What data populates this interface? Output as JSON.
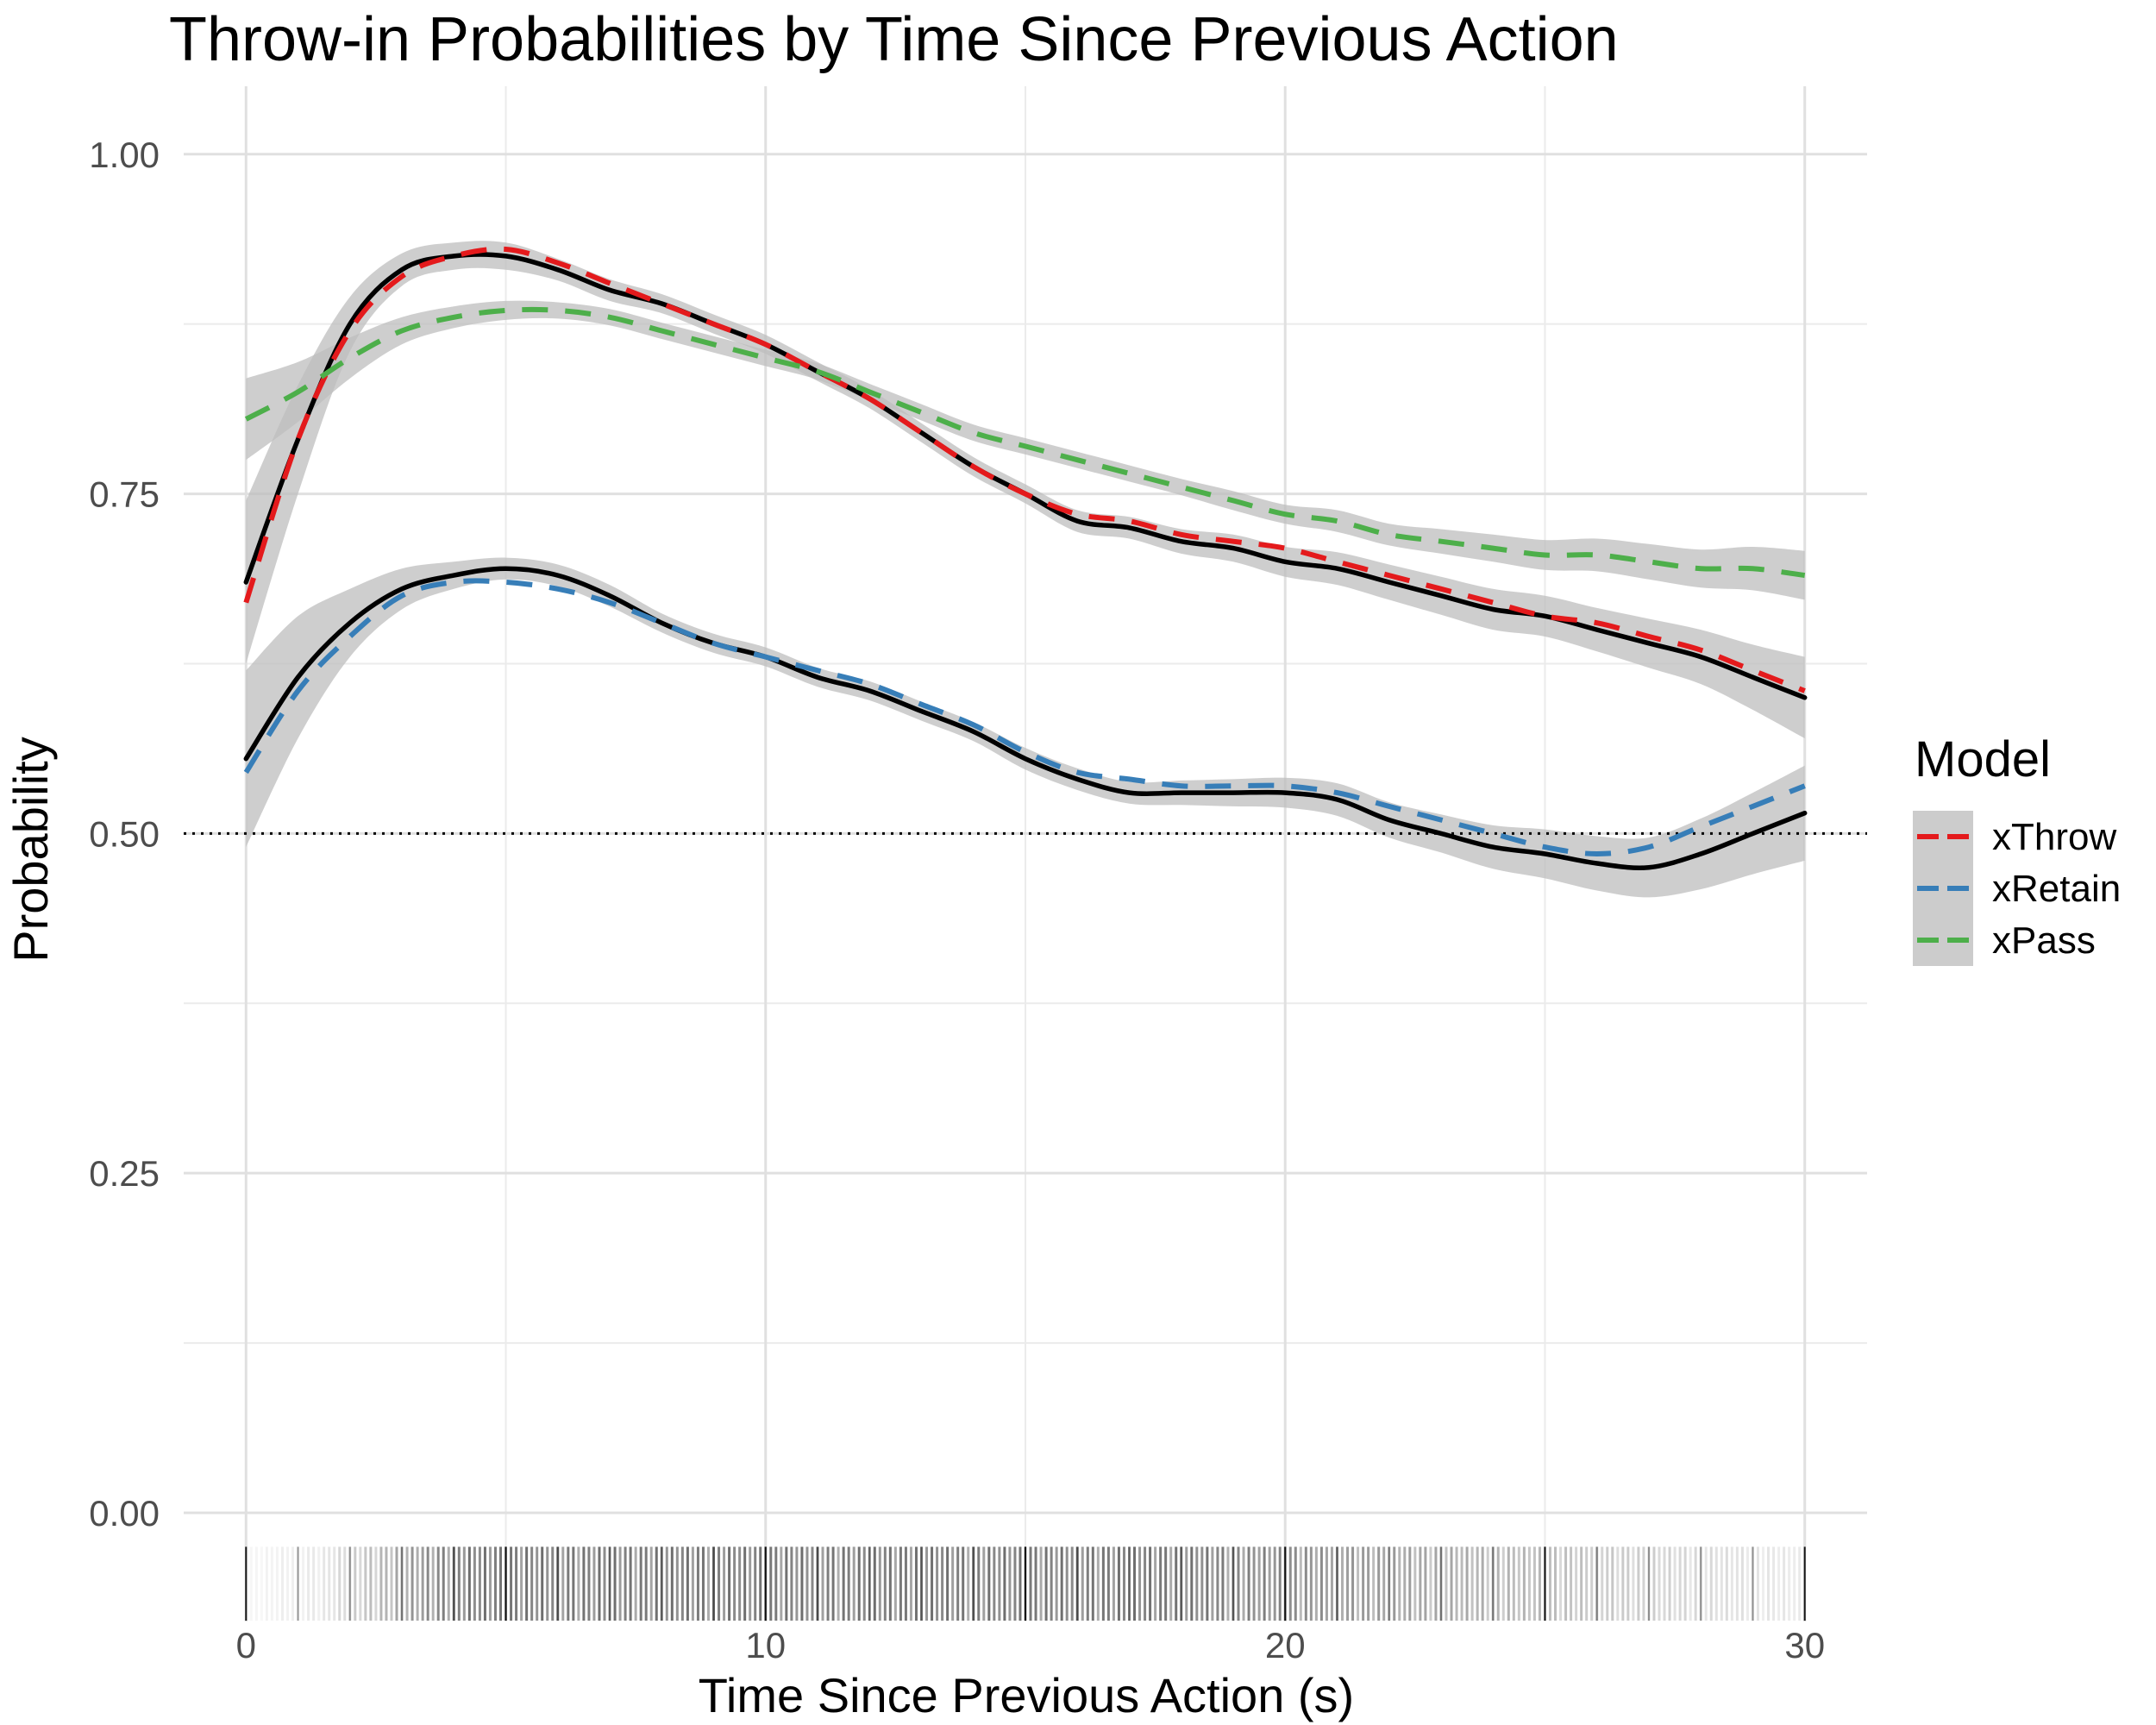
{
  "chart_data": {
    "type": "line",
    "title": "Throw-in Probabilities by Time Since Previous Action",
    "xlabel": "Time Since Previous Action (s)",
    "ylabel": "Probability",
    "xlim": [
      -1.2,
      31.2
    ],
    "ylim": [
      -0.08,
      1.05
    ],
    "x_ticks": [
      0,
      10,
      20,
      30
    ],
    "x_tick_labels": [
      "0",
      "10",
      "20",
      "30"
    ],
    "y_ticks": [
      0,
      0.25,
      0.5,
      0.75,
      1.0
    ],
    "y_tick_labels": [
      "0.00",
      "0.25",
      "0.50",
      "0.75",
      "1.00"
    ],
    "minor_y_ticks": [
      0.125,
      0.375,
      0.625,
      0.875
    ],
    "minor_x_ticks": [
      5,
      15,
      25
    ],
    "grid": true,
    "reference_line": {
      "y": 0.5,
      "style": "dotted",
      "color": "#000000"
    },
    "legend": {
      "title": "Model",
      "position": "right",
      "entries": [
        {
          "label": "xThrow",
          "color": "#e41a1c",
          "dash": "dashed"
        },
        {
          "label": "xRetain",
          "color": "#377eb8",
          "dash": "dashed"
        },
        {
          "label": "xPass",
          "color": "#4daf4a",
          "dash": "dashed"
        }
      ]
    },
    "x": [
      0,
      1,
      2,
      3,
      4,
      5,
      6,
      7,
      8,
      9,
      10,
      11,
      12,
      13,
      14,
      15,
      16,
      17,
      18,
      19,
      20,
      21,
      22,
      23,
      24,
      25,
      26,
      27,
      28,
      29,
      30
    ],
    "series": [
      {
        "name": "xThrow",
        "color": "#e41a1c",
        "dash": "dashed",
        "values": [
          0.67,
          0.79,
          0.87,
          0.91,
          0.925,
          0.93,
          0.92,
          0.905,
          0.89,
          0.875,
          0.86,
          0.84,
          0.82,
          0.795,
          0.77,
          0.75,
          0.735,
          0.73,
          0.72,
          0.715,
          0.71,
          0.7,
          0.69,
          0.68,
          0.67,
          0.66,
          0.655,
          0.645,
          0.635,
          0.62,
          0.605
        ]
      },
      {
        "name": "xRetain",
        "color": "#377eb8",
        "dash": "dashed",
        "values": [
          0.545,
          0.605,
          0.645,
          0.675,
          0.685,
          0.685,
          0.68,
          0.67,
          0.655,
          0.64,
          0.63,
          0.62,
          0.61,
          0.595,
          0.58,
          0.56,
          0.545,
          0.54,
          0.535,
          0.535,
          0.535,
          0.53,
          0.52,
          0.51,
          0.5,
          0.49,
          0.485,
          0.49,
          0.505,
          0.52,
          0.535
        ]
      },
      {
        "name": "xPass",
        "color": "#4daf4a",
        "dash": "dashed",
        "values": [
          0.805,
          0.825,
          0.85,
          0.87,
          0.88,
          0.885,
          0.885,
          0.88,
          0.87,
          0.86,
          0.85,
          0.84,
          0.825,
          0.81,
          0.795,
          0.785,
          0.775,
          0.765,
          0.755,
          0.745,
          0.735,
          0.73,
          0.72,
          0.715,
          0.71,
          0.705,
          0.705,
          0.7,
          0.695,
          0.695,
          0.69
        ]
      }
    ],
    "smooths": [
      {
        "color": "#000000",
        "dash": "solid",
        "values": [
          0.685,
          0.79,
          0.875,
          0.915,
          0.925,
          0.925,
          0.915,
          0.9,
          0.89,
          0.875,
          0.86,
          0.84,
          0.82,
          0.795,
          0.77,
          0.75,
          0.73,
          0.725,
          0.715,
          0.71,
          0.7,
          0.695,
          0.685,
          0.675,
          0.665,
          0.66,
          0.65,
          0.64,
          0.63,
          0.615,
          0.6
        ],
        "band_halfwidth": [
          0.06,
          0.04,
          0.02,
          0.012,
          0.01,
          0.01,
          0.008,
          0.008,
          0.007,
          0.007,
          0.007,
          0.007,
          0.007,
          0.007,
          0.007,
          0.007,
          0.008,
          0.008,
          0.009,
          0.01,
          0.011,
          0.012,
          0.013,
          0.014,
          0.015,
          0.015,
          0.016,
          0.018,
          0.02,
          0.024,
          0.03
        ]
      },
      {
        "color": "#000000",
        "dash": "solid",
        "values": [
          0.555,
          0.615,
          0.655,
          0.68,
          0.69,
          0.695,
          0.69,
          0.675,
          0.655,
          0.64,
          0.63,
          0.615,
          0.605,
          0.59,
          0.575,
          0.555,
          0.54,
          0.53,
          0.53,
          0.53,
          0.53,
          0.525,
          0.51,
          0.5,
          0.49,
          0.485,
          0.478,
          0.475,
          0.485,
          0.5,
          0.515
        ],
        "band_halfwidth": [
          0.065,
          0.045,
          0.025,
          0.015,
          0.01,
          0.008,
          0.008,
          0.008,
          0.007,
          0.007,
          0.007,
          0.007,
          0.007,
          0.007,
          0.007,
          0.008,
          0.008,
          0.008,
          0.009,
          0.01,
          0.011,
          0.012,
          0.013,
          0.014,
          0.016,
          0.018,
          0.02,
          0.022,
          0.026,
          0.03,
          0.035
        ]
      }
    ],
    "pass_band_halfwidth": [
      0.03,
      0.022,
      0.015,
      0.01,
      0.008,
      0.007,
      0.006,
      0.006,
      0.006,
      0.006,
      0.006,
      0.006,
      0.006,
      0.006,
      0.006,
      0.006,
      0.006,
      0.006,
      0.006,
      0.007,
      0.007,
      0.008,
      0.008,
      0.009,
      0.01,
      0.011,
      0.012,
      0.013,
      0.014,
      0.016,
      0.018
    ],
    "rug": {
      "position": "below",
      "x_min": 0,
      "x_max": 30,
      "step": 0.1
    }
  }
}
